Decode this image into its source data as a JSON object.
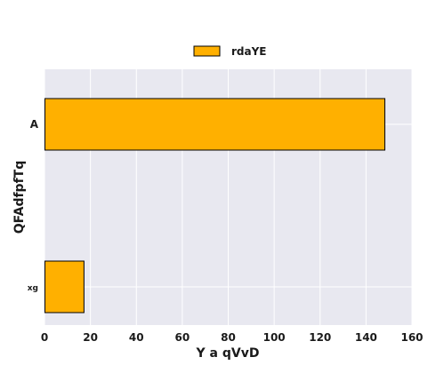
{
  "chart_data": {
    "type": "bar",
    "orientation": "horizontal",
    "categories": [
      "A",
      "xg"
    ],
    "series": [
      {
        "name": "rdaYE",
        "values": [
          148,
          17
        ]
      }
    ],
    "xlabel": "Y a qVvD",
    "ylabel": "QFAdfpfTq",
    "xlim": [
      0,
      160
    ],
    "xticks": [
      0,
      20,
      40,
      60,
      80,
      100,
      120,
      140,
      160
    ],
    "grid": true,
    "legend_position": "top-center",
    "colors": {
      "bar": "#FFB000",
      "bar_edge": "#000000",
      "plot_bg": "#E8E8F0",
      "grid": "#FFFFFF"
    }
  }
}
